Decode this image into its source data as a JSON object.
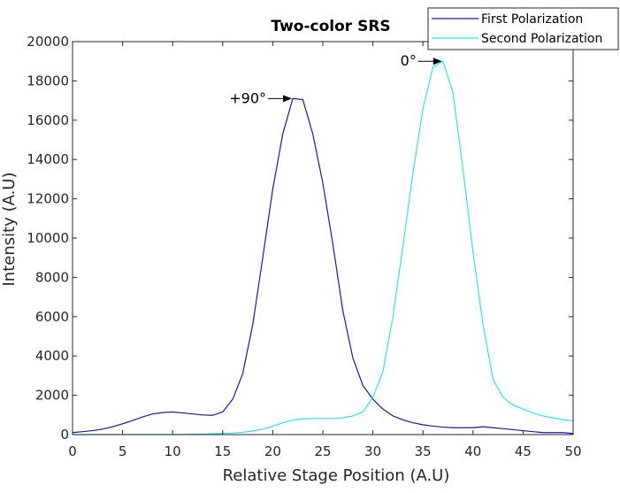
{
  "chart_data": {
    "type": "line",
    "title": "Two-color SRS",
    "xlabel": "Relative Stage Position (A.U)",
    "ylabel": "Intensity (A.U)",
    "xlim": [
      0,
      50
    ],
    "ylim": [
      0,
      20000
    ],
    "xticks": [
      "0",
      "5",
      "10",
      "15",
      "20",
      "25",
      "30",
      "35",
      "40",
      "45",
      "50"
    ],
    "yticks": [
      "0",
      "2000",
      "4000",
      "6000",
      "8000",
      "10000",
      "12000",
      "14000",
      "16000",
      "18000",
      "20000"
    ],
    "grid": false,
    "legend_position": "top-right",
    "series": [
      {
        "name": "First Polarization",
        "color": "#1a1aa6",
        "x": [
          0,
          1,
          2,
          3,
          4,
          5,
          6,
          7,
          8,
          9,
          10,
          11,
          12,
          13,
          14,
          15,
          16,
          17,
          18,
          19,
          20,
          21,
          22,
          23,
          24,
          25,
          26,
          27,
          28,
          29,
          30,
          31,
          32,
          33,
          34,
          35,
          36,
          37,
          38,
          39,
          40,
          41,
          42,
          43,
          44,
          45,
          46,
          47,
          48,
          49,
          50
        ],
        "y": [
          100,
          150,
          200,
          280,
          400,
          550,
          720,
          900,
          1050,
          1120,
          1150,
          1100,
          1050,
          1000,
          980,
          1150,
          1800,
          3100,
          5600,
          9000,
          12500,
          15300,
          17100,
          17050,
          15300,
          12800,
          9700,
          6300,
          3900,
          2500,
          1800,
          1300,
          950,
          750,
          600,
          500,
          430,
          380,
          350,
          350,
          350,
          400,
          350,
          300,
          250,
          200,
          150,
          100,
          100,
          100,
          50
        ]
      },
      {
        "name": "Second Polarization",
        "color": "#33e3e3",
        "x": [
          0,
          1,
          2,
          3,
          4,
          5,
          6,
          7,
          8,
          9,
          10,
          11,
          12,
          13,
          14,
          15,
          16,
          17,
          18,
          19,
          20,
          21,
          22,
          23,
          24,
          25,
          26,
          27,
          28,
          29,
          30,
          31,
          32,
          33,
          34,
          35,
          36,
          37,
          38,
          39,
          40,
          41,
          42,
          43,
          44,
          45,
          46,
          47,
          48,
          49,
          50
        ],
        "y": [
          0,
          0,
          0,
          0,
          0,
          0,
          0,
          0,
          0,
          0,
          0,
          0,
          20,
          30,
          40,
          60,
          80,
          120,
          180,
          280,
          430,
          600,
          730,
          800,
          820,
          820,
          820,
          850,
          950,
          1150,
          1900,
          3200,
          6000,
          9600,
          13300,
          16600,
          18700,
          19000,
          17400,
          13500,
          9300,
          5600,
          2800,
          1900,
          1500,
          1300,
          1100,
          950,
          850,
          760,
          700
        ]
      }
    ],
    "annotations": [
      {
        "text": "+90°",
        "x": 22,
        "y": 17100
      },
      {
        "text": "0°",
        "x": 37,
        "y": 19000
      }
    ]
  }
}
